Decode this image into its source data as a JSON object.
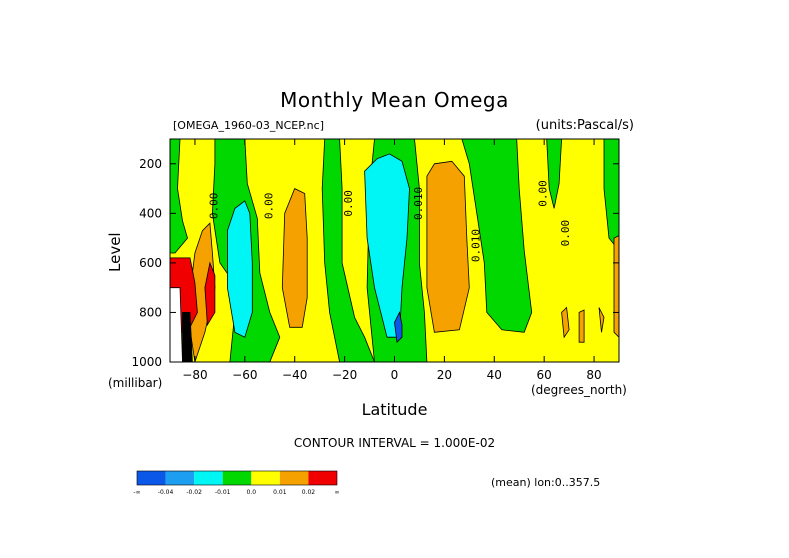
{
  "chart_data": {
    "type": "heatmap",
    "title": "Monthly Mean Omega",
    "file_label": "[OMEGA_1960-03_NCEP.nc]",
    "units_label": "(units:Pascal/s)",
    "xlabel": "Latitude",
    "x_unit": "(degrees_north)",
    "ylabel": "Level",
    "y_unit": "(millibar)",
    "xlim": [
      -90,
      90
    ],
    "ylim": [
      1000,
      100
    ],
    "x_ticks": [
      -80,
      -60,
      -40,
      -20,
      0,
      20,
      40,
      60,
      80
    ],
    "y_ticks": [
      200,
      400,
      600,
      800,
      1000
    ],
    "contour_interval_text": "CONTOUR INTERVAL = 1.000E-02",
    "region_text": "(mean) lon:0..357.5",
    "contour_labels": [
      {
        "text": "0.00",
        "lat": -71,
        "level": 370
      },
      {
        "text": "0.00",
        "lat": -49,
        "level": 370
      },
      {
        "text": "0.00",
        "lat": -17,
        "level": 360
      },
      {
        "text": "0.010",
        "lat": 11,
        "level": 360
      },
      {
        "text": "0.010",
        "lat": 34,
        "level": 530
      },
      {
        "text": "0.00",
        "lat": 61,
        "level": 320
      },
      {
        "text": "0.00",
        "lat": 70,
        "level": 480
      }
    ],
    "colorbar": {
      "colors": [
        "#0b57e8",
        "#1e9ef0",
        "#00f5f5",
        "#00d800",
        "#ffff00",
        "#f5a200",
        "#f00000"
      ],
      "tick_labels": [
        "-∞",
        "-0.04",
        "-0.02",
        "-0.01",
        "0.0",
        "0.01",
        "0.02",
        "∞"
      ]
    },
    "regions": [
      {
        "fill": "#ffff00",
        "points": [
          [
            -90,
            100
          ],
          [
            90,
            100
          ],
          [
            90,
            1000
          ],
          [
            -90,
            1000
          ]
        ]
      },
      {
        "fill": "#00d800",
        "points": [
          [
            -90,
            100
          ],
          [
            -86,
            100
          ],
          [
            -87,
            300
          ],
          [
            -85,
            430
          ],
          [
            -83,
            500
          ],
          [
            -88,
            560
          ],
          [
            -90,
            560
          ]
        ]
      },
      {
        "fill": "#00d800",
        "points": [
          [
            -72,
            100
          ],
          [
            -60,
            100
          ],
          [
            -59,
            280
          ],
          [
            -55,
            420
          ],
          [
            -54,
            640
          ],
          [
            -50,
            800
          ],
          [
            -46,
            900
          ],
          [
            -50,
            1000
          ],
          [
            -66,
            1000
          ],
          [
            -63,
            700
          ],
          [
            -70,
            600
          ],
          [
            -73,
            400
          ],
          [
            -72,
            200
          ]
        ]
      },
      {
        "fill": "#00d800",
        "points": [
          [
            -28,
            100
          ],
          [
            -22,
            100
          ],
          [
            -21,
            300
          ],
          [
            -21,
            600
          ],
          [
            -16,
            820
          ],
          [
            -12,
            900
          ],
          [
            -8,
            1000
          ],
          [
            -22,
            1000
          ],
          [
            -26,
            800
          ],
          [
            -28,
            600
          ],
          [
            -29,
            300
          ]
        ]
      },
      {
        "fill": "#00d800",
        "points": [
          [
            -8,
            100
          ],
          [
            8,
            100
          ],
          [
            10,
            300
          ],
          [
            10,
            600
          ],
          [
            12,
            800
          ],
          [
            13,
            1000
          ],
          [
            -8,
            1000
          ],
          [
            -11,
            700
          ],
          [
            -10,
            300
          ]
        ]
      },
      {
        "fill": "#00d800",
        "points": [
          [
            27,
            100
          ],
          [
            49,
            100
          ],
          [
            50,
            300
          ],
          [
            52,
            550
          ],
          [
            55,
            800
          ],
          [
            52,
            880
          ],
          [
            43,
            870
          ],
          [
            37,
            800
          ],
          [
            36,
            600
          ],
          [
            33,
            400
          ],
          [
            30,
            200
          ]
        ]
      },
      {
        "fill": "#00d800",
        "points": [
          [
            61,
            100
          ],
          [
            67,
            100
          ],
          [
            66,
            280
          ],
          [
            64,
            380
          ],
          [
            62,
            300
          ]
        ]
      },
      {
        "fill": "#00d800",
        "points": [
          [
            84,
            100
          ],
          [
            90,
            100
          ],
          [
            90,
            550
          ],
          [
            86,
            500
          ],
          [
            84,
            300
          ]
        ]
      },
      {
        "fill": "#00f5f5",
        "points": [
          [
            -67,
            470
          ],
          [
            -64,
            380
          ],
          [
            -60,
            350
          ],
          [
            -58,
            400
          ],
          [
            -57,
            600
          ],
          [
            -57,
            800
          ],
          [
            -60,
            900
          ],
          [
            -64,
            880
          ],
          [
            -67,
            700
          ]
        ]
      },
      {
        "fill": "#00f5f5",
        "points": [
          [
            -12,
            230
          ],
          [
            -7,
            180
          ],
          [
            -2,
            160
          ],
          [
            3,
            190
          ],
          [
            6,
            300
          ],
          [
            5,
            500
          ],
          [
            3,
            700
          ],
          [
            2,
            900
          ],
          [
            -3,
            900
          ],
          [
            -8,
            700
          ],
          [
            -11,
            500
          ]
        ]
      },
      {
        "fill": "#f5a200",
        "points": [
          [
            -44,
            400
          ],
          [
            -40,
            300
          ],
          [
            -36,
            320
          ],
          [
            -35,
            500
          ],
          [
            -35,
            740
          ],
          [
            -37,
            860
          ],
          [
            -42,
            860
          ],
          [
            -45,
            700
          ]
        ]
      },
      {
        "fill": "#f5a200",
        "points": [
          [
            13,
            250
          ],
          [
            16,
            200
          ],
          [
            23,
            190
          ],
          [
            28,
            250
          ],
          [
            29,
            500
          ],
          [
            30,
            700
          ],
          [
            26,
            870
          ],
          [
            16,
            880
          ],
          [
            13,
            700
          ]
        ]
      },
      {
        "fill": "#f5a200",
        "points": [
          [
            -80,
            560
          ],
          [
            -77,
            470
          ],
          [
            -74,
            440
          ],
          [
            -73,
            560
          ],
          [
            -72,
            700
          ],
          [
            -76,
            880
          ],
          [
            -80,
            1000
          ],
          [
            -83,
            800
          ]
        ]
      },
      {
        "fill": "#f5a200",
        "points": [
          [
            88,
            500
          ],
          [
            90,
            490
          ],
          [
            90,
            900
          ],
          [
            88,
            880
          ]
        ]
      },
      {
        "fill": "#f5a200",
        "points": [
          [
            67,
            800
          ],
          [
            69,
            780
          ],
          [
            70,
            870
          ],
          [
            68,
            900
          ]
        ]
      },
      {
        "fill": "#f5a200",
        "points": [
          [
            74,
            800
          ],
          [
            76,
            790
          ],
          [
            76,
            920
          ],
          [
            74,
            920
          ]
        ]
      },
      {
        "fill": "#f5a200",
        "points": [
          [
            82,
            780
          ],
          [
            84,
            820
          ],
          [
            83,
            880
          ]
        ]
      },
      {
        "fill": "#0b57e8",
        "points": [
          [
            0,
            840
          ],
          [
            2,
            800
          ],
          [
            3,
            850
          ],
          [
            3,
            900
          ],
          [
            1,
            920
          ]
        ]
      },
      {
        "fill": "#f00000",
        "points": [
          [
            -90,
            580
          ],
          [
            -82,
            580
          ],
          [
            -80,
            680
          ],
          [
            -79,
            800
          ],
          [
            -83,
            880
          ],
          [
            -90,
            880
          ]
        ]
      },
      {
        "fill": "#f00000",
        "points": [
          [
            -76,
            700
          ],
          [
            -74,
            600
          ],
          [
            -72,
            650
          ],
          [
            -72,
            800
          ],
          [
            -75,
            850
          ]
        ]
      },
      {
        "fill": "#ffffff",
        "points": [
          [
            -90,
            700
          ],
          [
            -86,
            700
          ],
          [
            -85,
            1000
          ],
          [
            -90,
            1000
          ]
        ]
      },
      {
        "fill": "#000000",
        "points": [
          [
            -85,
            800
          ],
          [
            -82,
            800
          ],
          [
            -81,
            1000
          ],
          [
            -85,
            1000
          ]
        ]
      }
    ]
  }
}
